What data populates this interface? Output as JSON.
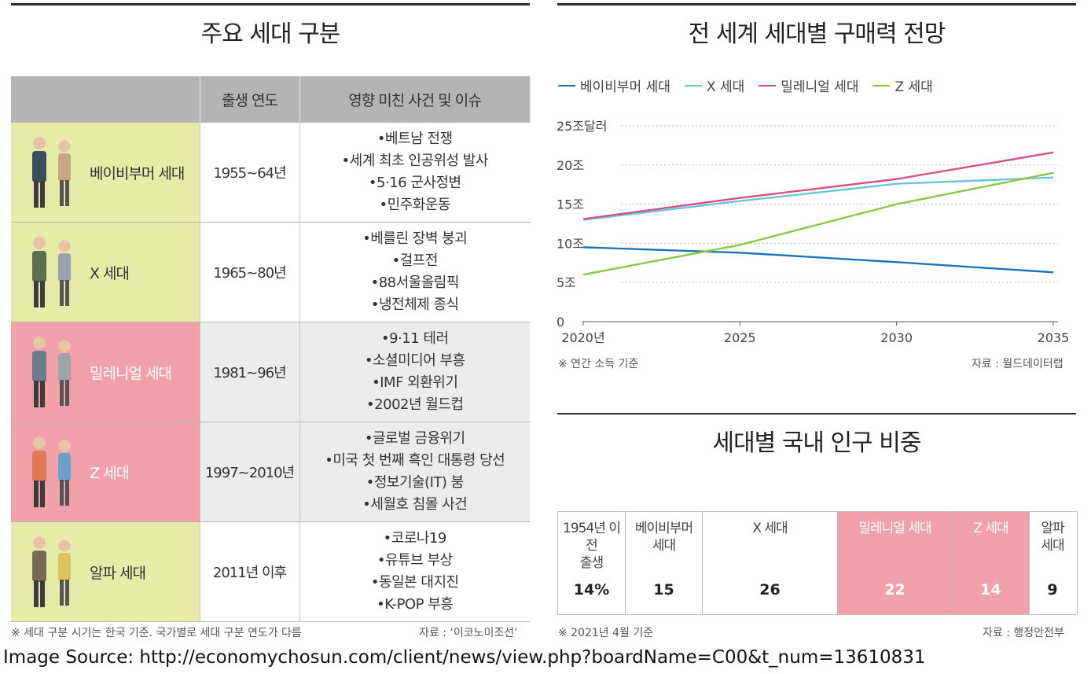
{
  "left": {
    "title": "주요 세대 구분",
    "headers": [
      "",
      "출생 연도",
      "영향 미친 사건 및 이슈"
    ],
    "rows": [
      {
        "name": "베이비부머 세대",
        "years": "1955~64년",
        "bg": "#e6eca8",
        "label_color": "#333333",
        "events": [
          "•베트남 전쟁",
          "•세계 최초 인공위성 발사",
          "•5·16 군사정변",
          "•민주화운동"
        ]
      },
      {
        "name": "X 세대",
        "years": "1965~80년",
        "bg": "#e6eca8",
        "label_color": "#333333",
        "events": [
          "•베를린 장벽 붕괴",
          "•걸프전",
          "•88서울올림픽",
          "•냉전체제 종식"
        ]
      },
      {
        "name": "밀레니얼 세대",
        "years": "1981~96년",
        "bg": "#f2a0aa",
        "label_color": "#ffffff",
        "events": [
          "•9·11 테러",
          "•소셜미디어 부흥",
          "•IMF 외환위기",
          "•2002년 월드컵"
        ]
      },
      {
        "name": "Z 세대",
        "years": "1997~2010년",
        "bg": "#f2a0aa",
        "label_color": "#ffffff",
        "events": [
          "•글로벌 금융위기",
          "•미국 첫 번째 흑인 대통령 당선",
          "•정보기술(IT) 붐",
          "•세월호 침몰 사건"
        ]
      },
      {
        "name": "알파 세대",
        "years": "2011년 이후",
        "bg": "#e6eca8",
        "label_color": "#333333",
        "events": [
          "•코로나19",
          "•유튜브 부상",
          "•동일본 대지진",
          "•K-POP 부흥"
        ]
      }
    ],
    "note": "※ 세대 구분 시기는 한국 기준. 국가별로 세대 구분 연도가 다름",
    "source": "자료 : ‘이코노미조선’"
  },
  "chart_data": {
    "type": "line",
    "title": "전 세계 세대별 구매력 전망",
    "x": [
      2020,
      2025,
      2030,
      2035
    ],
    "x_tick_labels": [
      "2020년",
      "2025",
      "2030",
      "2035"
    ],
    "y_tick_labels": [
      "0",
      "5조",
      "10조",
      "15조",
      "20조",
      "25조달러"
    ],
    "y_ticks": [
      0,
      5,
      10,
      15,
      20,
      25
    ],
    "ylim": [
      0,
      25
    ],
    "grid": "dotted horizontal",
    "legend": "top",
    "series": [
      {
        "name": "베이비부머 세대",
        "color": "#1b75bb",
        "values": [
          9.5,
          8.8,
          7.6,
          6.3
        ]
      },
      {
        "name": "X 세대",
        "color": "#6cc5df",
        "values": [
          13.0,
          15.4,
          17.6,
          18.4
        ]
      },
      {
        "name": "밀레니얼 세대",
        "color": "#d64f82",
        "values": [
          13.1,
          15.8,
          18.2,
          21.6
        ]
      },
      {
        "name": "Z 세대",
        "color": "#8dc641",
        "values": [
          6.0,
          9.8,
          15.0,
          19.0
        ]
      }
    ],
    "note": "※ 연간 소득 기준",
    "source": "자료 : 월드데이터랩"
  },
  "population": {
    "title": "세대별 국내 인구 비중",
    "cells": [
      {
        "label": "1954년 이전\n출생",
        "value": "14%",
        "highlight": false
      },
      {
        "label": "베이비부머\n세대",
        "value": "15",
        "highlight": false
      },
      {
        "label": "X 세대",
        "value": "26",
        "highlight": false
      },
      {
        "label": "밀레니얼 세대",
        "value": "22",
        "highlight": true
      },
      {
        "label": "Z 세대",
        "value": "14",
        "highlight": true
      },
      {
        "label": "알파\n세대",
        "value": "9",
        "highlight": false
      }
    ],
    "note": "※ 2021년 4월 기준",
    "source": "자료 : 행정안전부"
  },
  "image_source": "Image Source: http://economychosun.com/client/news/view.php?boardName=C00&t_num=13610831"
}
